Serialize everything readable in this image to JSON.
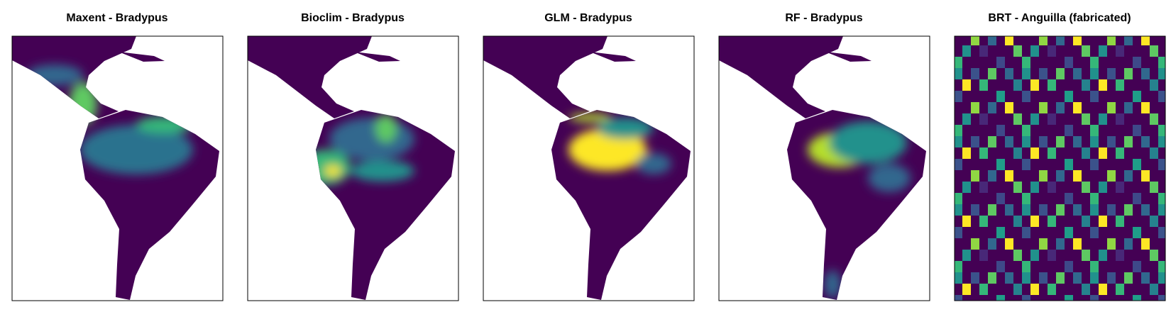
{
  "panels": [
    {
      "title": "Maxent - Bradypus"
    },
    {
      "title": "Bioclim - Bradypus"
    },
    {
      "title": "GLM - Bradypus"
    },
    {
      "title": "RF - Bradypus"
    },
    {
      "title": "BRT - Anguilla (fabricated)"
    }
  ]
}
